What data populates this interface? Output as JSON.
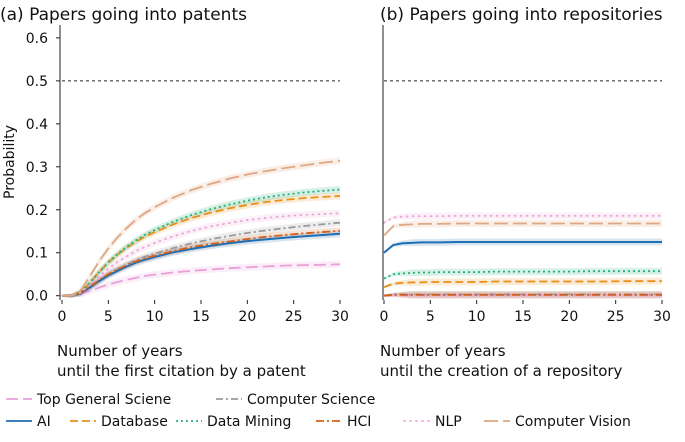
{
  "chart_data": [
    {
      "type": "line",
      "panel": "a",
      "title": "(a)  Papers going into patents",
      "xlabel_lines": [
        "Number of years",
        "until the first citation by a patent"
      ],
      "ylabel": "Probability",
      "xlim": [
        0,
        30
      ],
      "ylim": [
        -0.01,
        0.63
      ],
      "xticks": [
        "0",
        "5",
        "10",
        "15",
        "20",
        "25",
        "30"
      ],
      "yticks": [
        "0.0",
        "0.1",
        "0.2",
        "0.3",
        "0.4",
        "0.5",
        "0.6"
      ],
      "reference_line_y": 0.5,
      "x": [
        0,
        1,
        2,
        3,
        4,
        5,
        6,
        7,
        8,
        9,
        10,
        12,
        14,
        16,
        18,
        20,
        22,
        24,
        26,
        28,
        30
      ],
      "series": [
        {
          "name": "Top General Sciene",
          "color": "#e8a0d8",
          "dash": "12,5",
          "values": [
            0.0,
            0.0,
            0.003,
            0.011,
            0.019,
            0.026,
            0.032,
            0.037,
            0.042,
            0.046,
            0.049,
            0.054,
            0.058,
            0.061,
            0.064,
            0.066,
            0.068,
            0.07,
            0.071,
            0.072,
            0.073
          ]
        },
        {
          "name": "Computer Science",
          "color": "#9a9a9a",
          "dash": "7,3,2,3",
          "values": [
            0.0,
            0.0,
            0.005,
            0.02,
            0.035,
            0.05,
            0.062,
            0.073,
            0.083,
            0.091,
            0.098,
            0.111,
            0.122,
            0.131,
            0.139,
            0.146,
            0.152,
            0.157,
            0.162,
            0.166,
            0.17
          ]
        },
        {
          "name": "AI",
          "color": "#1f6fb4",
          "dash": "",
          "values": [
            0.0,
            0.0,
            0.005,
            0.019,
            0.034,
            0.047,
            0.058,
            0.068,
            0.077,
            0.084,
            0.09,
            0.101,
            0.109,
            0.116,
            0.122,
            0.127,
            0.131,
            0.135,
            0.138,
            0.141,
            0.144
          ]
        },
        {
          "name": "Database",
          "color": "#e8901a",
          "dash": "8,4",
          "values": [
            0.0,
            0.0,
            0.008,
            0.03,
            0.055,
            0.077,
            0.096,
            0.112,
            0.126,
            0.138,
            0.148,
            0.166,
            0.181,
            0.193,
            0.203,
            0.211,
            0.218,
            0.223,
            0.227,
            0.23,
            0.232
          ]
        },
        {
          "name": "Data Mining",
          "color": "#22b07a",
          "dash": "2,3",
          "values": [
            0.0,
            0.0,
            0.008,
            0.03,
            0.055,
            0.078,
            0.097,
            0.114,
            0.129,
            0.142,
            0.153,
            0.172,
            0.188,
            0.201,
            0.212,
            0.221,
            0.229,
            0.235,
            0.24,
            0.244,
            0.247
          ]
        },
        {
          "name": "HCI",
          "color": "#d2601a",
          "dash": "8,3,2,3",
          "values": [
            0.0,
            0.0,
            0.006,
            0.021,
            0.036,
            0.05,
            0.061,
            0.071,
            0.08,
            0.087,
            0.093,
            0.104,
            0.113,
            0.12,
            0.126,
            0.132,
            0.137,
            0.141,
            0.145,
            0.148,
            0.151
          ]
        },
        {
          "name": "NLP",
          "color": "#e9a6d8",
          "dash": "1,5",
          "values": [
            0.0,
            0.0,
            0.007,
            0.025,
            0.045,
            0.063,
            0.079,
            0.092,
            0.104,
            0.114,
            0.123,
            0.138,
            0.151,
            0.161,
            0.169,
            0.176,
            0.181,
            0.185,
            0.188,
            0.19,
            0.192
          ]
        },
        {
          "name": "Computer Vision",
          "color": "#e0a882",
          "dash": "14,5",
          "values": [
            0.0,
            0.0,
            0.012,
            0.045,
            0.08,
            0.11,
            0.136,
            0.158,
            0.177,
            0.193,
            0.206,
            0.228,
            0.246,
            0.26,
            0.272,
            0.282,
            0.29,
            0.297,
            0.303,
            0.309,
            0.314
          ]
        }
      ]
    },
    {
      "type": "line",
      "panel": "b",
      "title": "(b)  Papers going into repositories",
      "xlabel_lines": [
        "Number of years",
        "until the creation of a repository"
      ],
      "xlim": [
        0,
        30
      ],
      "ylim": [
        -0.01,
        0.63
      ],
      "xticks": [
        "0",
        "5",
        "10",
        "15",
        "20",
        "25",
        "30"
      ],
      "reference_line_y": 0.5,
      "x": [
        0,
        1,
        2,
        3,
        4,
        5,
        6,
        8,
        10,
        12,
        14,
        16,
        18,
        20,
        22,
        24,
        26,
        28,
        30
      ],
      "series": [
        {
          "name": "Top General Sciene",
          "color": "#e8a0d8",
          "dash": "12,5",
          "values": [
            0.0,
            0.001,
            0.001,
            0.001,
            0.001,
            0.001,
            0.001,
            0.001,
            0.001,
            0.001,
            0.001,
            0.001,
            0.001,
            0.001,
            0.001,
            0.001,
            0.001,
            0.001,
            0.001
          ]
        },
        {
          "name": "Computer Science",
          "color": "#9a9a9a",
          "dash": "7,3,2,3",
          "values": [
            0.0,
            0.003,
            0.003,
            0.003,
            0.003,
            0.003,
            0.003,
            0.003,
            0.003,
            0.003,
            0.003,
            0.003,
            0.003,
            0.003,
            0.003,
            0.003,
            0.003,
            0.003,
            0.003
          ]
        },
        {
          "name": "AI",
          "color": "#1f6fb4",
          "dash": "",
          "values": [
            0.1,
            0.118,
            0.122,
            0.123,
            0.124,
            0.124,
            0.124,
            0.125,
            0.125,
            0.125,
            0.125,
            0.125,
            0.125,
            0.125,
            0.125,
            0.125,
            0.125,
            0.125,
            0.125
          ]
        },
        {
          "name": "Database",
          "color": "#e8901a",
          "dash": "8,4",
          "values": [
            0.02,
            0.028,
            0.03,
            0.031,
            0.031,
            0.032,
            0.032,
            0.032,
            0.032,
            0.033,
            0.033,
            0.033,
            0.033,
            0.033,
            0.033,
            0.033,
            0.034,
            0.034,
            0.034
          ]
        },
        {
          "name": "Data Mining",
          "color": "#22b07a",
          "dash": "2,3",
          "values": [
            0.04,
            0.05,
            0.052,
            0.053,
            0.054,
            0.054,
            0.055,
            0.055,
            0.055,
            0.056,
            0.056,
            0.056,
            0.056,
            0.056,
            0.057,
            0.057,
            0.057,
            0.057,
            0.057
          ]
        },
        {
          "name": "HCI",
          "color": "#d2601a",
          "dash": "8,3,2,3",
          "values": [
            0.0,
            0.002,
            0.002,
            0.002,
            0.002,
            0.002,
            0.002,
            0.002,
            0.002,
            0.002,
            0.002,
            0.002,
            0.002,
            0.002,
            0.002,
            0.002,
            0.002,
            0.002,
            0.002
          ]
        },
        {
          "name": "NLP",
          "color": "#e9a6d8",
          "dash": "1,5",
          "values": [
            0.17,
            0.182,
            0.184,
            0.185,
            0.185,
            0.185,
            0.185,
            0.186,
            0.186,
            0.186,
            0.186,
            0.186,
            0.186,
            0.186,
            0.186,
            0.186,
            0.186,
            0.186,
            0.186
          ]
        },
        {
          "name": "Computer Vision",
          "color": "#e0a882",
          "dash": "14,5",
          "values": [
            0.14,
            0.162,
            0.165,
            0.166,
            0.167,
            0.167,
            0.167,
            0.168,
            0.168,
            0.168,
            0.168,
            0.168,
            0.168,
            0.168,
            0.168,
            0.168,
            0.168,
            0.168,
            0.168
          ]
        }
      ]
    }
  ],
  "legend": {
    "rows": [
      [
        "Top General Sciene",
        "Computer Science"
      ],
      [
        "AI",
        "Database",
        "Data Mining",
        "HCI",
        "NLP",
        "Computer Vision"
      ]
    ]
  }
}
